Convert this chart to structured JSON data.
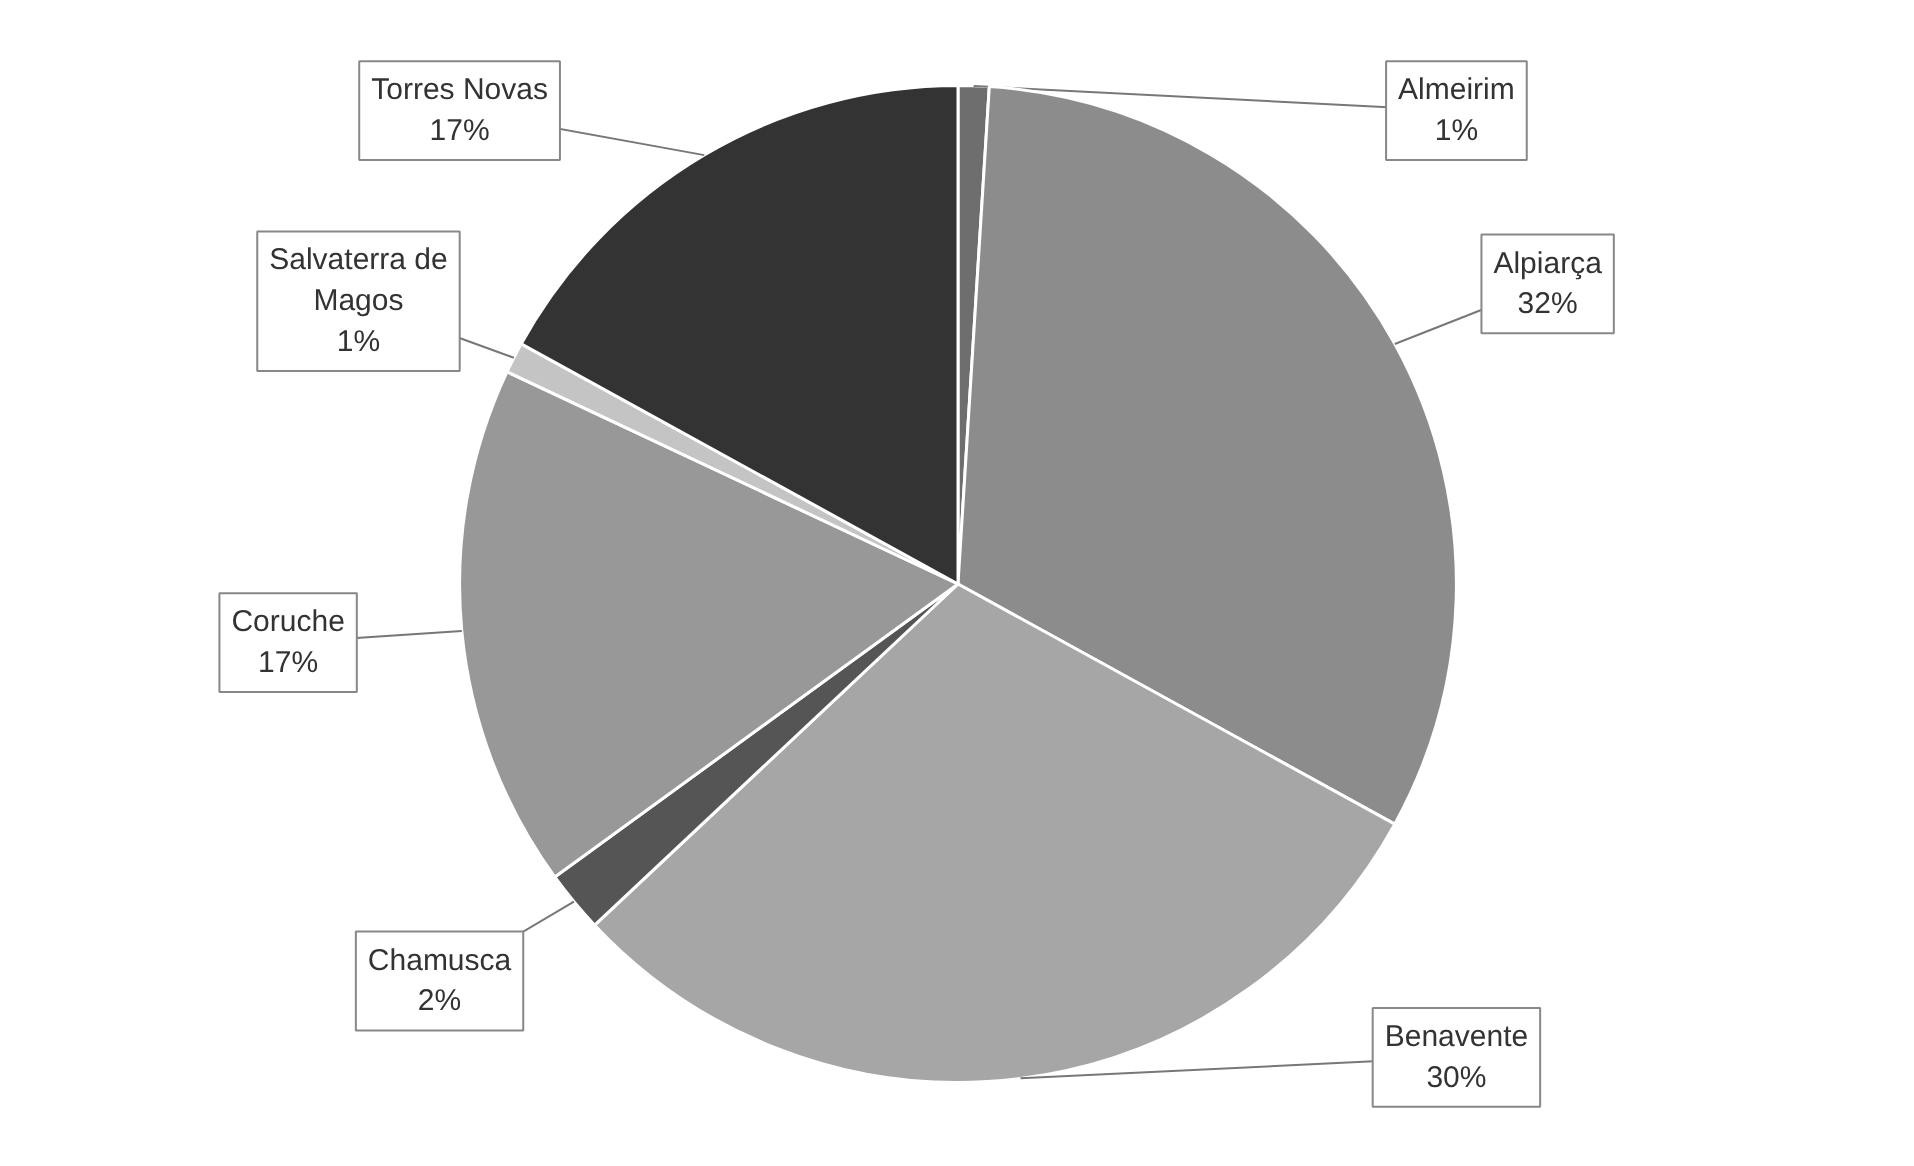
{
  "chart_data": {
    "type": "pie",
    "categories": [
      "Almeirim",
      "Alpiarça",
      "Benavente",
      "Chamusca",
      "Coruche",
      "Salvaterra de Magos",
      "Torres Novas"
    ],
    "values": [
      1,
      32,
      30,
      2,
      17,
      1,
      17
    ],
    "value_labels": [
      "1%",
      "32%",
      "30%",
      "2%",
      "17%",
      "1%",
      "17%"
    ],
    "colors": [
      "#6e6e6e",
      "#8c8c8c",
      "#a6a6a6",
      "#555555",
      "#989898",
      "#c4c4c4",
      "#333333"
    ]
  }
}
